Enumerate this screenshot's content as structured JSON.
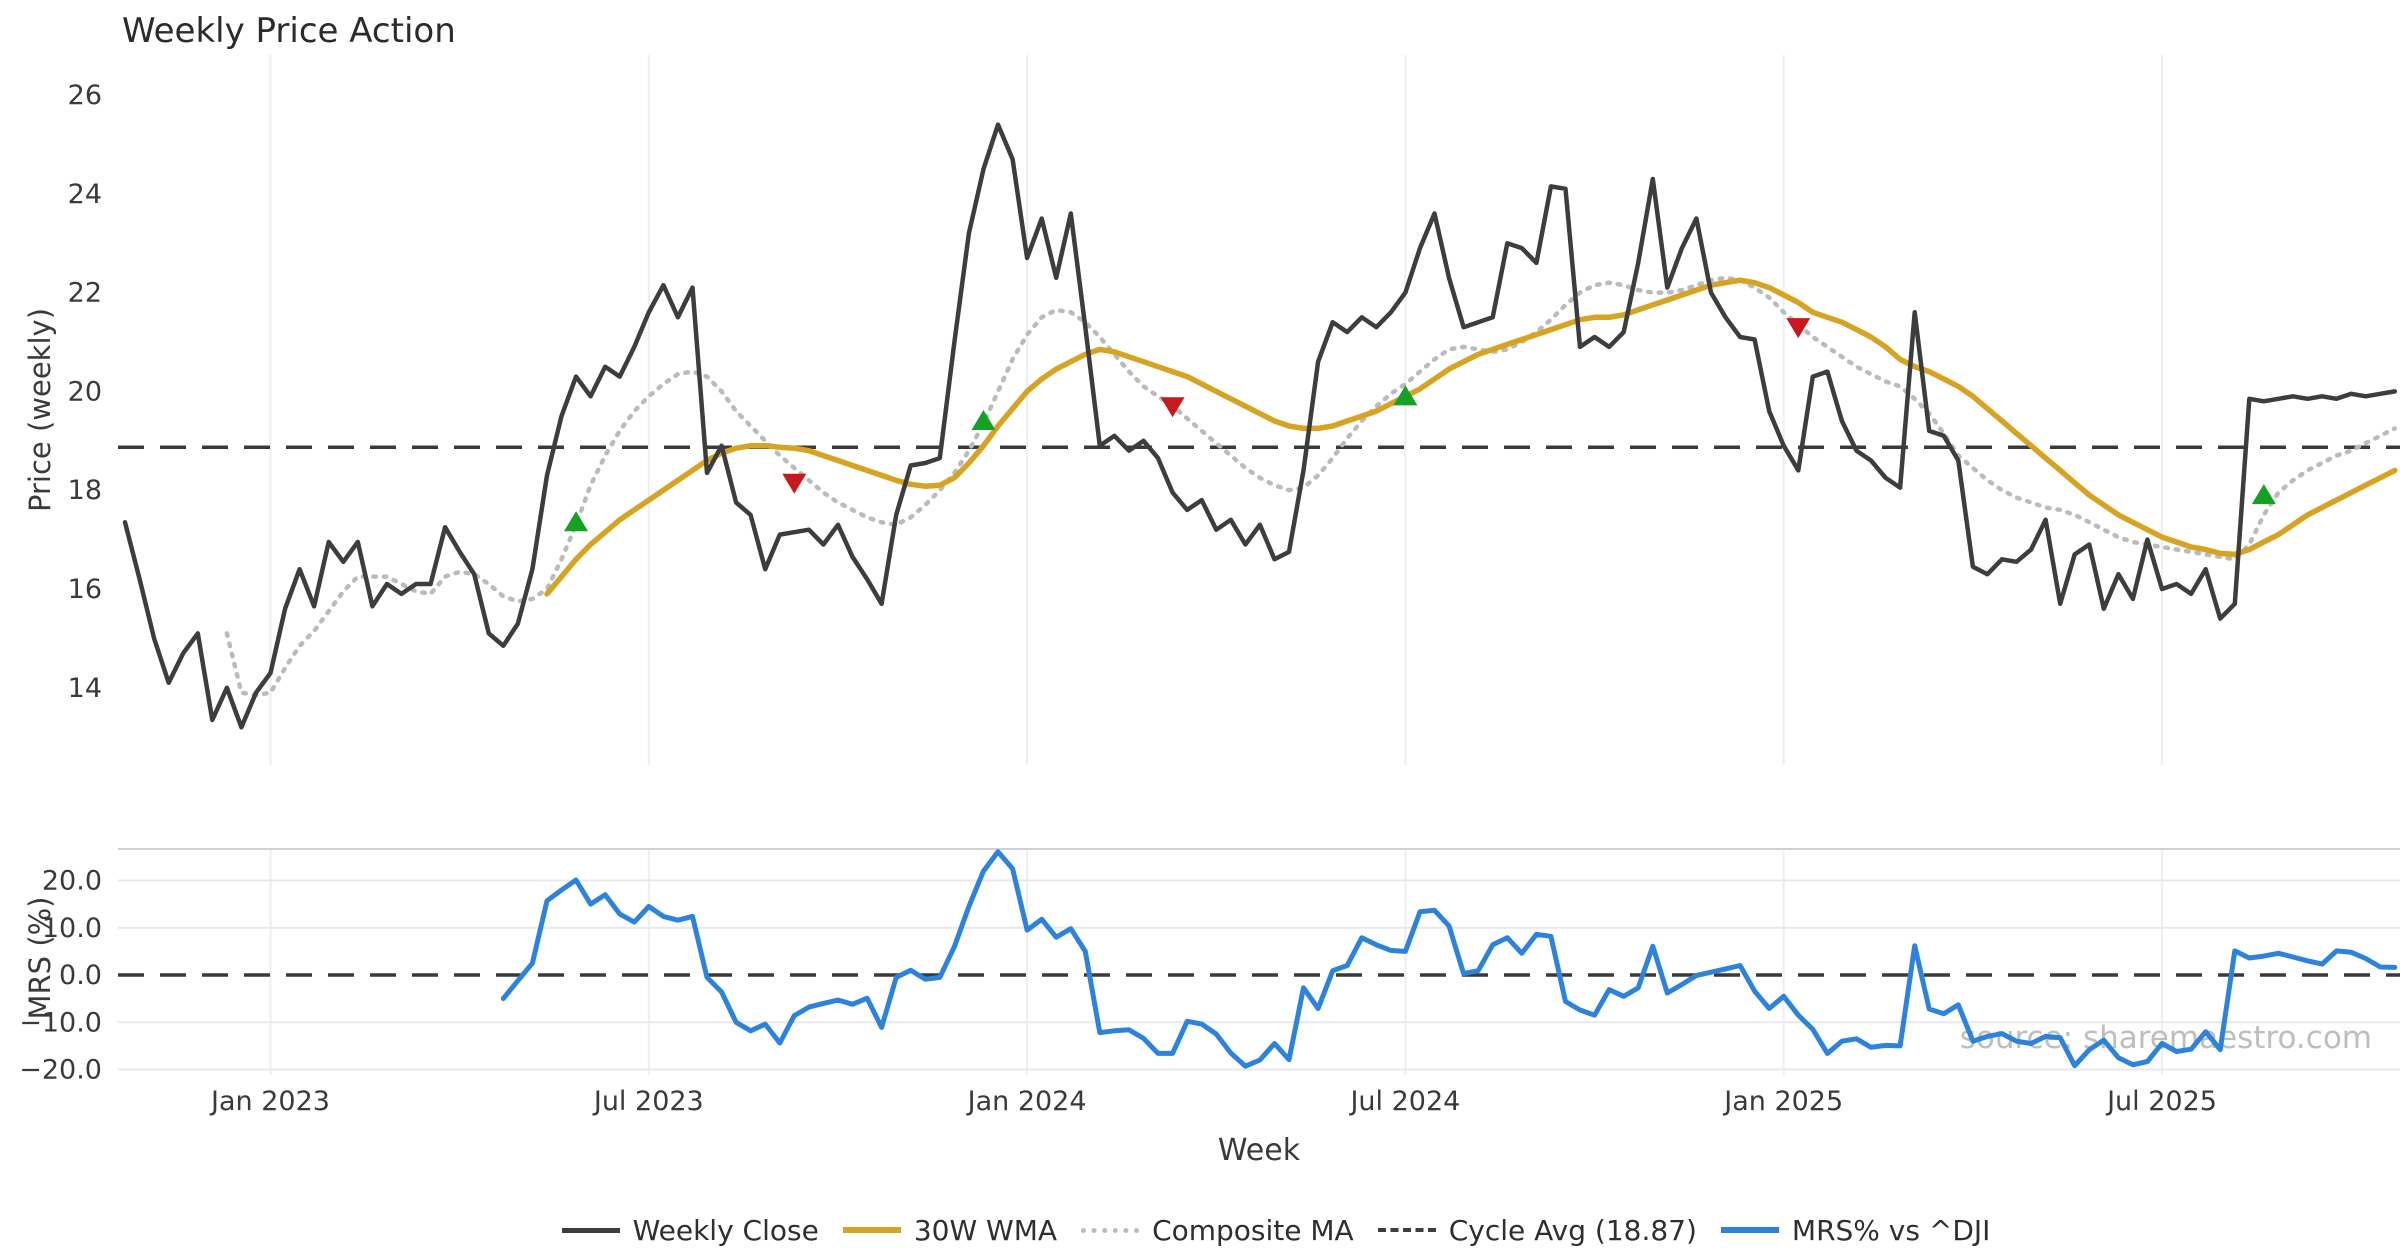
{
  "title": "Weekly Price Action",
  "watermark": "source: sharemaestro.com",
  "x_axis": {
    "label": "Week",
    "ticks": [
      {
        "week": 10,
        "label": "Jan 2023"
      },
      {
        "week": 36,
        "label": "Jul 2023"
      },
      {
        "week": 62,
        "label": "Jan 2024"
      },
      {
        "week": 88,
        "label": "Jul 2024"
      },
      {
        "week": 114,
        "label": "Jan 2025"
      },
      {
        "week": 140,
        "label": "Jul 2025"
      }
    ]
  },
  "charts": {
    "price": {
      "ylabel": "Price (weekly)",
      "yticks": [
        "26",
        "24",
        "22",
        "20",
        "18",
        "16",
        "14"
      ]
    },
    "mrs": {
      "ylabel": "MRS (%)",
      "yticks": [
        "20.0",
        "10.0",
        "0.0",
        "−10.0",
        "−20.0"
      ]
    }
  },
  "legend": [
    {
      "label": "Weekly Close",
      "style": "solid",
      "color": "#3d3d3d",
      "thick": 5
    },
    {
      "label": "30W WMA",
      "style": "solid",
      "color": "#d7a322",
      "thick": 6
    },
    {
      "label": "Composite MA",
      "style": "dotted",
      "color": "#bbbbbb",
      "thick": 5
    },
    {
      "label": "Cycle Avg (18.87)",
      "style": "dashed",
      "color": "#3d3d3d",
      "thick": 4
    },
    {
      "label": "MRS% vs ^DJI",
      "style": "solid",
      "color": "#2d82dc",
      "thick": 6
    }
  ],
  "colors": {
    "close": "#3d3d3d",
    "wma": "#d7a322",
    "composite": "#bbbbbb",
    "cycle_avg": "#3a3a3a",
    "mrs": "#2d82dc",
    "buy_marker": "#16a026",
    "sell_marker": "#c8191e",
    "gridline": "#eeeef2",
    "hgridline": "#e9e9ed",
    "spine": "#cfcfd4"
  },
  "chart_data": [
    {
      "type": "line",
      "panel": "price",
      "title": "Weekly Price Action",
      "xlabel": "Week",
      "ylabel": "Price (weekly)",
      "ylim": [
        13,
        26.5
      ],
      "grid": "vertical-only",
      "cycle_avg": 18.87,
      "x_unit": "week_index",
      "series": [
        {
          "name": "Weekly Close",
          "start_week": 0,
          "values": [
            17.35,
            16.2,
            15.0,
            14.1,
            14.7,
            15.1,
            13.35,
            14.0,
            13.2,
            13.9,
            14.3,
            15.6,
            16.4,
            15.65,
            16.95,
            16.55,
            16.95,
            15.65,
            16.1,
            15.9,
            16.1,
            16.1,
            17.25,
            16.75,
            16.3,
            15.1,
            14.85,
            15.3,
            16.4,
            18.3,
            19.5,
            20.3,
            19.9,
            20.5,
            20.3,
            20.9,
            21.6,
            22.15,
            21.5,
            22.1,
            18.35,
            18.9,
            17.75,
            17.5,
            16.4,
            17.1,
            17.15,
            17.2,
            16.9,
            17.3,
            16.65,
            16.2,
            15.7,
            17.5,
            18.5,
            18.55,
            18.65,
            21.0,
            23.2,
            24.5,
            25.4,
            24.7,
            22.7,
            23.5,
            22.3,
            23.6,
            21.3,
            18.9,
            19.1,
            18.8,
            19.0,
            18.65,
            17.95,
            17.6,
            17.8,
            17.2,
            17.4,
            16.9,
            17.3,
            16.6,
            16.75,
            18.4,
            20.6,
            21.4,
            21.2,
            21.5,
            21.3,
            21.6,
            22.0,
            22.9,
            23.6,
            22.3,
            21.3,
            21.4,
            21.5,
            23.0,
            22.9,
            22.6,
            24.15,
            24.1,
            20.9,
            21.1,
            20.9,
            21.2,
            22.6,
            24.3,
            22.1,
            22.9,
            23.5,
            22.0,
            21.5,
            21.1,
            21.05,
            19.6,
            18.9,
            18.4,
            20.3,
            20.4,
            19.4,
            18.8,
            18.6,
            18.25,
            18.05,
            21.6,
            19.2,
            19.1,
            18.6,
            16.45,
            16.3,
            16.6,
            16.55,
            16.8,
            17.4,
            15.7,
            16.7,
            16.9,
            15.6,
            16.3,
            15.8,
            17.0,
            16.0,
            16.1,
            15.9,
            16.4,
            15.4,
            15.7,
            19.85,
            19.8,
            19.85,
            19.9,
            19.85,
            19.9,
            19.85,
            19.95,
            19.9,
            19.95,
            20.0
          ]
        },
        {
          "name": "30W WMA",
          "start_week": 29,
          "values": [
            15.9,
            16.25,
            16.6,
            16.9,
            17.15,
            17.4,
            17.6,
            17.8,
            18.0,
            18.2,
            18.4,
            18.6,
            18.75,
            18.85,
            18.9,
            18.9,
            18.87,
            18.85,
            18.8,
            18.7,
            18.6,
            18.5,
            18.4,
            18.3,
            18.2,
            18.12,
            18.08,
            18.1,
            18.25,
            18.55,
            18.9,
            19.3,
            19.65,
            20.0,
            20.25,
            20.45,
            20.6,
            20.75,
            20.85,
            20.8,
            20.7,
            20.6,
            20.5,
            20.4,
            20.3,
            20.15,
            20.0,
            19.85,
            19.7,
            19.55,
            19.4,
            19.3,
            19.25,
            19.25,
            19.3,
            19.4,
            19.5,
            19.6,
            19.75,
            19.9,
            20.05,
            20.25,
            20.45,
            20.6,
            20.75,
            20.85,
            20.95,
            21.05,
            21.15,
            21.25,
            21.35,
            21.45,
            21.5,
            21.5,
            21.55,
            21.65,
            21.75,
            21.85,
            21.95,
            22.05,
            22.15,
            22.2,
            22.25,
            22.2,
            22.1,
            21.95,
            21.8,
            21.6,
            21.5,
            21.4,
            21.25,
            21.1,
            20.9,
            20.65,
            20.5,
            20.4,
            20.25,
            20.1,
            19.9,
            19.65,
            19.4,
            19.15,
            18.9,
            18.65,
            18.4,
            18.15,
            17.9,
            17.7,
            17.5,
            17.35,
            17.2,
            17.05,
            16.95,
            16.85,
            16.8,
            16.72,
            16.7,
            16.8,
            16.95,
            17.1,
            17.3,
            17.5,
            17.65,
            17.8,
            17.95,
            18.1,
            18.25,
            18.4
          ]
        },
        {
          "name": "Composite MA",
          "start_week": 7,
          "values": [
            15.1,
            13.9,
            13.85,
            13.9,
            14.4,
            14.85,
            15.15,
            15.55,
            15.95,
            16.25,
            16.25,
            16.25,
            16.1,
            15.95,
            15.9,
            16.25,
            16.35,
            16.3,
            16.1,
            15.85,
            15.75,
            15.8,
            16.0,
            16.6,
            17.3,
            18.1,
            18.7,
            19.2,
            19.6,
            19.9,
            20.15,
            20.35,
            20.4,
            20.3,
            20.0,
            19.6,
            19.3,
            19.0,
            18.7,
            18.45,
            18.2,
            17.95,
            17.75,
            17.6,
            17.45,
            17.35,
            17.3,
            17.45,
            17.7,
            18.0,
            18.35,
            18.8,
            19.35,
            20.0,
            20.65,
            21.15,
            21.5,
            21.65,
            21.6,
            21.4,
            21.1,
            20.75,
            20.4,
            20.1,
            19.9,
            19.7,
            19.45,
            19.2,
            18.95,
            18.7,
            18.45,
            18.25,
            18.1,
            18.0,
            18.05,
            18.3,
            18.65,
            19.05,
            19.4,
            19.7,
            19.95,
            20.15,
            20.4,
            20.65,
            20.85,
            20.9,
            20.85,
            20.8,
            20.85,
            21.0,
            21.2,
            21.45,
            21.75,
            22.0,
            22.15,
            22.2,
            22.15,
            22.05,
            22.0,
            22.0,
            22.05,
            22.15,
            22.25,
            22.3,
            22.25,
            22.1,
            21.9,
            21.6,
            21.35,
            21.1,
            20.9,
            20.7,
            20.5,
            20.35,
            20.2,
            20.1,
            19.85,
            19.55,
            19.15,
            18.7,
            18.45,
            18.2,
            18.0,
            17.85,
            17.75,
            17.65,
            17.6,
            17.5,
            17.35,
            17.2,
            17.05,
            16.95,
            16.9,
            16.85,
            16.8,
            16.75,
            16.7,
            16.65,
            16.6,
            16.9,
            17.5,
            17.95,
            18.2,
            18.4,
            18.55,
            18.7,
            18.8,
            18.95,
            19.1,
            19.25
          ]
        }
      ],
      "signals": {
        "buy": [
          {
            "week": 31,
            "price": 17.35
          },
          {
            "week": 59,
            "price": 19.4
          },
          {
            "week": 88,
            "price": 19.9
          },
          {
            "week": 147,
            "price": 17.9
          }
        ],
        "sell": [
          {
            "week": 46,
            "price": 18.15
          },
          {
            "week": 72,
            "price": 19.7
          },
          {
            "week": 115,
            "price": 21.3
          }
        ]
      }
    },
    {
      "type": "line",
      "panel": "mrs",
      "xlabel": "Week",
      "ylabel": "MRS (%)",
      "ylim": [
        -22,
        27
      ],
      "grid": "both",
      "zero_line": 0,
      "x_unit": "week_index",
      "series": [
        {
          "name": "MRS% vs ^DJI",
          "start_week": 26,
          "values": [
            -5.0,
            -1.2,
            2.5,
            15.7,
            18.0,
            20.1,
            15.0,
            17.0,
            12.9,
            11.2,
            14.5,
            12.4,
            11.6,
            12.4,
            -0.5,
            -3.6,
            -10.0,
            -11.8,
            -10.4,
            -14.4,
            -8.6,
            -6.8,
            -6.0,
            -5.3,
            -6.2,
            -4.9,
            -11.1,
            -0.5,
            1.0,
            -0.9,
            -0.5,
            6.0,
            14.5,
            22.0,
            26.1,
            22.5,
            9.5,
            11.8,
            8.0,
            9.8,
            5.0,
            -12.2,
            -11.8,
            -11.6,
            -13.4,
            -16.6,
            -16.6,
            -9.8,
            -10.4,
            -12.5,
            -16.5,
            -19.3,
            -18.0,
            -14.5,
            -17.9,
            -2.7,
            -7.1,
            0.9,
            2.0,
            7.9,
            6.4,
            5.2,
            5.0,
            13.4,
            13.7,
            10.4,
            0.3,
            0.9,
            6.4,
            7.9,
            4.6,
            8.6,
            8.2,
            -5.6,
            -7.4,
            -8.5,
            -3.1,
            -4.5,
            -2.7,
            6.1,
            -3.8,
            -2.0,
            -0.1,
            0.6,
            1.3,
            2.0,
            -3.4,
            -7.1,
            -4.5,
            -8.5,
            -11.5,
            -16.6,
            -14.0,
            -13.5,
            -15.3,
            -14.9,
            -15.0,
            6.2,
            -7.2,
            -8.2,
            -6.3,
            -14.0,
            -13.0,
            -12.4,
            -14.0,
            -14.5,
            -13.0,
            -13.3,
            -19.2,
            -15.8,
            -13.8,
            -17.5,
            -19.0,
            -18.3,
            -14.5,
            -16.2,
            -15.7,
            -12.0,
            -15.8,
            5.1,
            3.6,
            4.0,
            4.6,
            3.8,
            3.0,
            2.3,
            5.1,
            4.8,
            3.5,
            1.7,
            1.6
          ]
        }
      ]
    }
  ]
}
